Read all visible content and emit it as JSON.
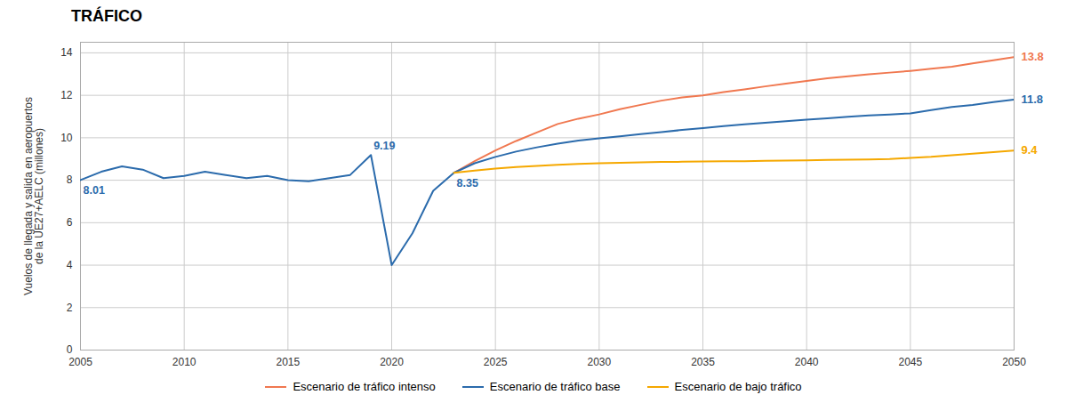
{
  "chart_data": {
    "type": "line",
    "title": "TRÁFICO",
    "ylabel": "Vuelos de llegada y salida en aeropuertos\nde la UE27+AELC (millones)",
    "x": [
      2005,
      2006,
      2007,
      2008,
      2009,
      2010,
      2011,
      2012,
      2013,
      2014,
      2015,
      2016,
      2017,
      2018,
      2019,
      2020,
      2021,
      2022,
      2023,
      2024,
      2025,
      2026,
      2027,
      2028,
      2029,
      2030,
      2031,
      2032,
      2033,
      2034,
      2035,
      2036,
      2037,
      2038,
      2039,
      2040,
      2041,
      2042,
      2043,
      2044,
      2045,
      2046,
      2047,
      2048,
      2049,
      2050
    ],
    "series": [
      {
        "name": "Escenario de tráfico intenso",
        "color": "#f07850",
        "values": [
          null,
          null,
          null,
          null,
          null,
          null,
          null,
          null,
          null,
          null,
          null,
          null,
          null,
          null,
          null,
          null,
          null,
          null,
          8.35,
          8.9,
          9.4,
          9.85,
          10.25,
          10.65,
          10.9,
          11.1,
          11.35,
          11.55,
          11.75,
          11.9,
          12.0,
          12.15,
          12.28,
          12.42,
          12.55,
          12.68,
          12.8,
          12.9,
          12.99,
          13.07,
          13.15,
          13.25,
          13.35,
          13.5,
          13.65,
          13.8
        ]
      },
      {
        "name": "Escenario de tráfico base",
        "color": "#2b6bac",
        "values": [
          8.01,
          8.4,
          8.65,
          8.5,
          8.1,
          8.2,
          8.4,
          8.25,
          8.1,
          8.2,
          8.0,
          7.95,
          8.1,
          8.25,
          9.19,
          4.0,
          5.5,
          7.5,
          8.35,
          8.8,
          9.1,
          9.35,
          9.55,
          9.72,
          9.87,
          9.97,
          10.07,
          10.17,
          10.27,
          10.37,
          10.46,
          10.55,
          10.63,
          10.71,
          10.78,
          10.85,
          10.92,
          10.99,
          11.05,
          11.1,
          11.15,
          11.3,
          11.45,
          11.55,
          11.68,
          11.8
        ]
      },
      {
        "name": "Escenario de bajo tráfico",
        "color": "#f5a800",
        "values": [
          null,
          null,
          null,
          null,
          null,
          null,
          null,
          null,
          null,
          null,
          null,
          null,
          null,
          null,
          null,
          null,
          null,
          null,
          8.35,
          8.45,
          8.55,
          8.62,
          8.68,
          8.73,
          8.77,
          8.8,
          8.82,
          8.84,
          8.86,
          8.87,
          8.88,
          8.89,
          8.9,
          8.92,
          8.93,
          8.94,
          8.96,
          8.97,
          8.98,
          9.0,
          9.05,
          9.1,
          9.18,
          9.25,
          9.32,
          9.4
        ]
      }
    ],
    "xlim": [
      2005,
      2050
    ],
    "ylim": [
      0,
      14.5
    ],
    "xticks": [
      2005,
      2010,
      2015,
      2020,
      2025,
      2030,
      2035,
      2040,
      2045,
      2050
    ],
    "yticks": [
      0,
      2,
      4,
      6,
      8,
      10,
      12,
      14
    ],
    "grid": true,
    "legend": "bottom",
    "annotations": [
      {
        "x": 2005,
        "y": 8.01,
        "text": "8.01",
        "color": "#2b6bac"
      },
      {
        "x": 2019,
        "y": 9.19,
        "text": "9.19",
        "color": "#2b6bac"
      },
      {
        "x": 2023,
        "y": 8.35,
        "text": "8.35",
        "color": "#2b6bac"
      },
      {
        "x": 2050,
        "y": 13.8,
        "text": "13.8",
        "color": "#f07850"
      },
      {
        "x": 2050,
        "y": 11.8,
        "text": "11.8",
        "color": "#2b6bac"
      },
      {
        "x": 2050,
        "y": 9.4,
        "text": "9.4",
        "color": "#f5a800"
      }
    ]
  }
}
